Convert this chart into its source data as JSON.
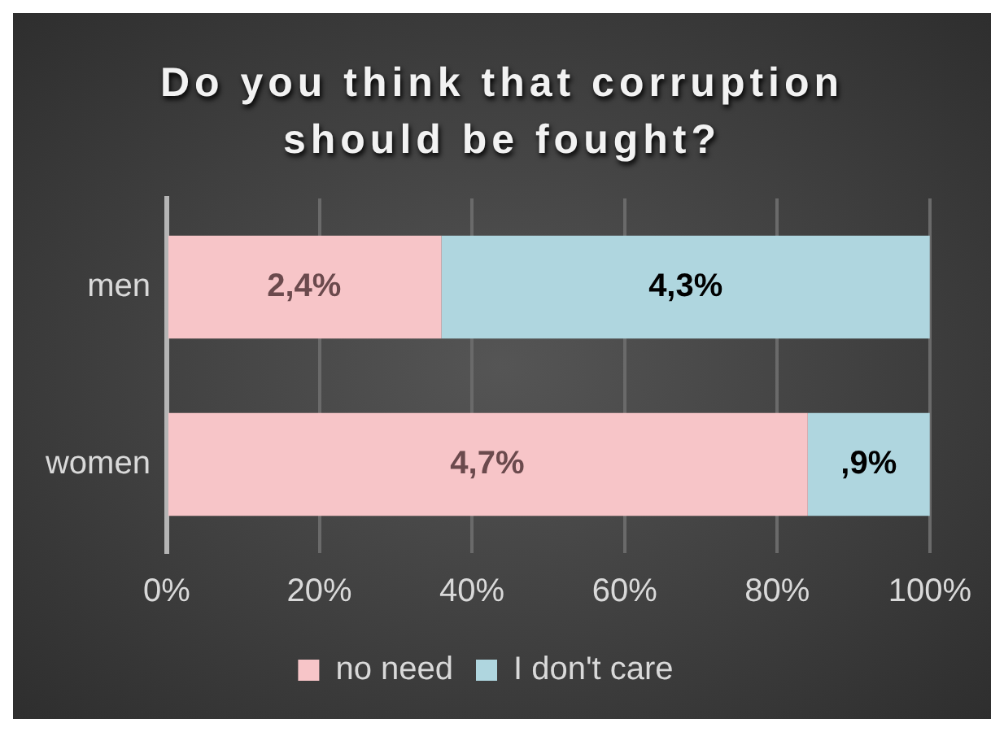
{
  "chart_data": {
    "type": "bar",
    "orientation": "horizontal",
    "stacked": true,
    "title": "Do you think that corruption should be fought?",
    "categories": [
      "men",
      "women"
    ],
    "series": [
      {
        "name": "no need",
        "color": "#f7c5c8",
        "values": [
          36,
          84
        ]
      },
      {
        "name": "I don't care",
        "color": "#afd6df",
        "values": [
          64,
          16
        ]
      }
    ],
    "annotations": [
      "2,4%",
      "4,3%",
      "4,7%",
      ",9%"
    ],
    "xlim": [
      0,
      100
    ],
    "xticks": [
      {
        "value": 0,
        "label": "0%"
      },
      {
        "value": 20,
        "label": "20%"
      },
      {
        "value": 40,
        "label": "40%"
      },
      {
        "value": 60,
        "label": "60%"
      },
      {
        "value": 80,
        "label": "80%"
      },
      {
        "value": 100,
        "label": "100%"
      }
    ],
    "grid": "x",
    "legend": "bottom"
  }
}
